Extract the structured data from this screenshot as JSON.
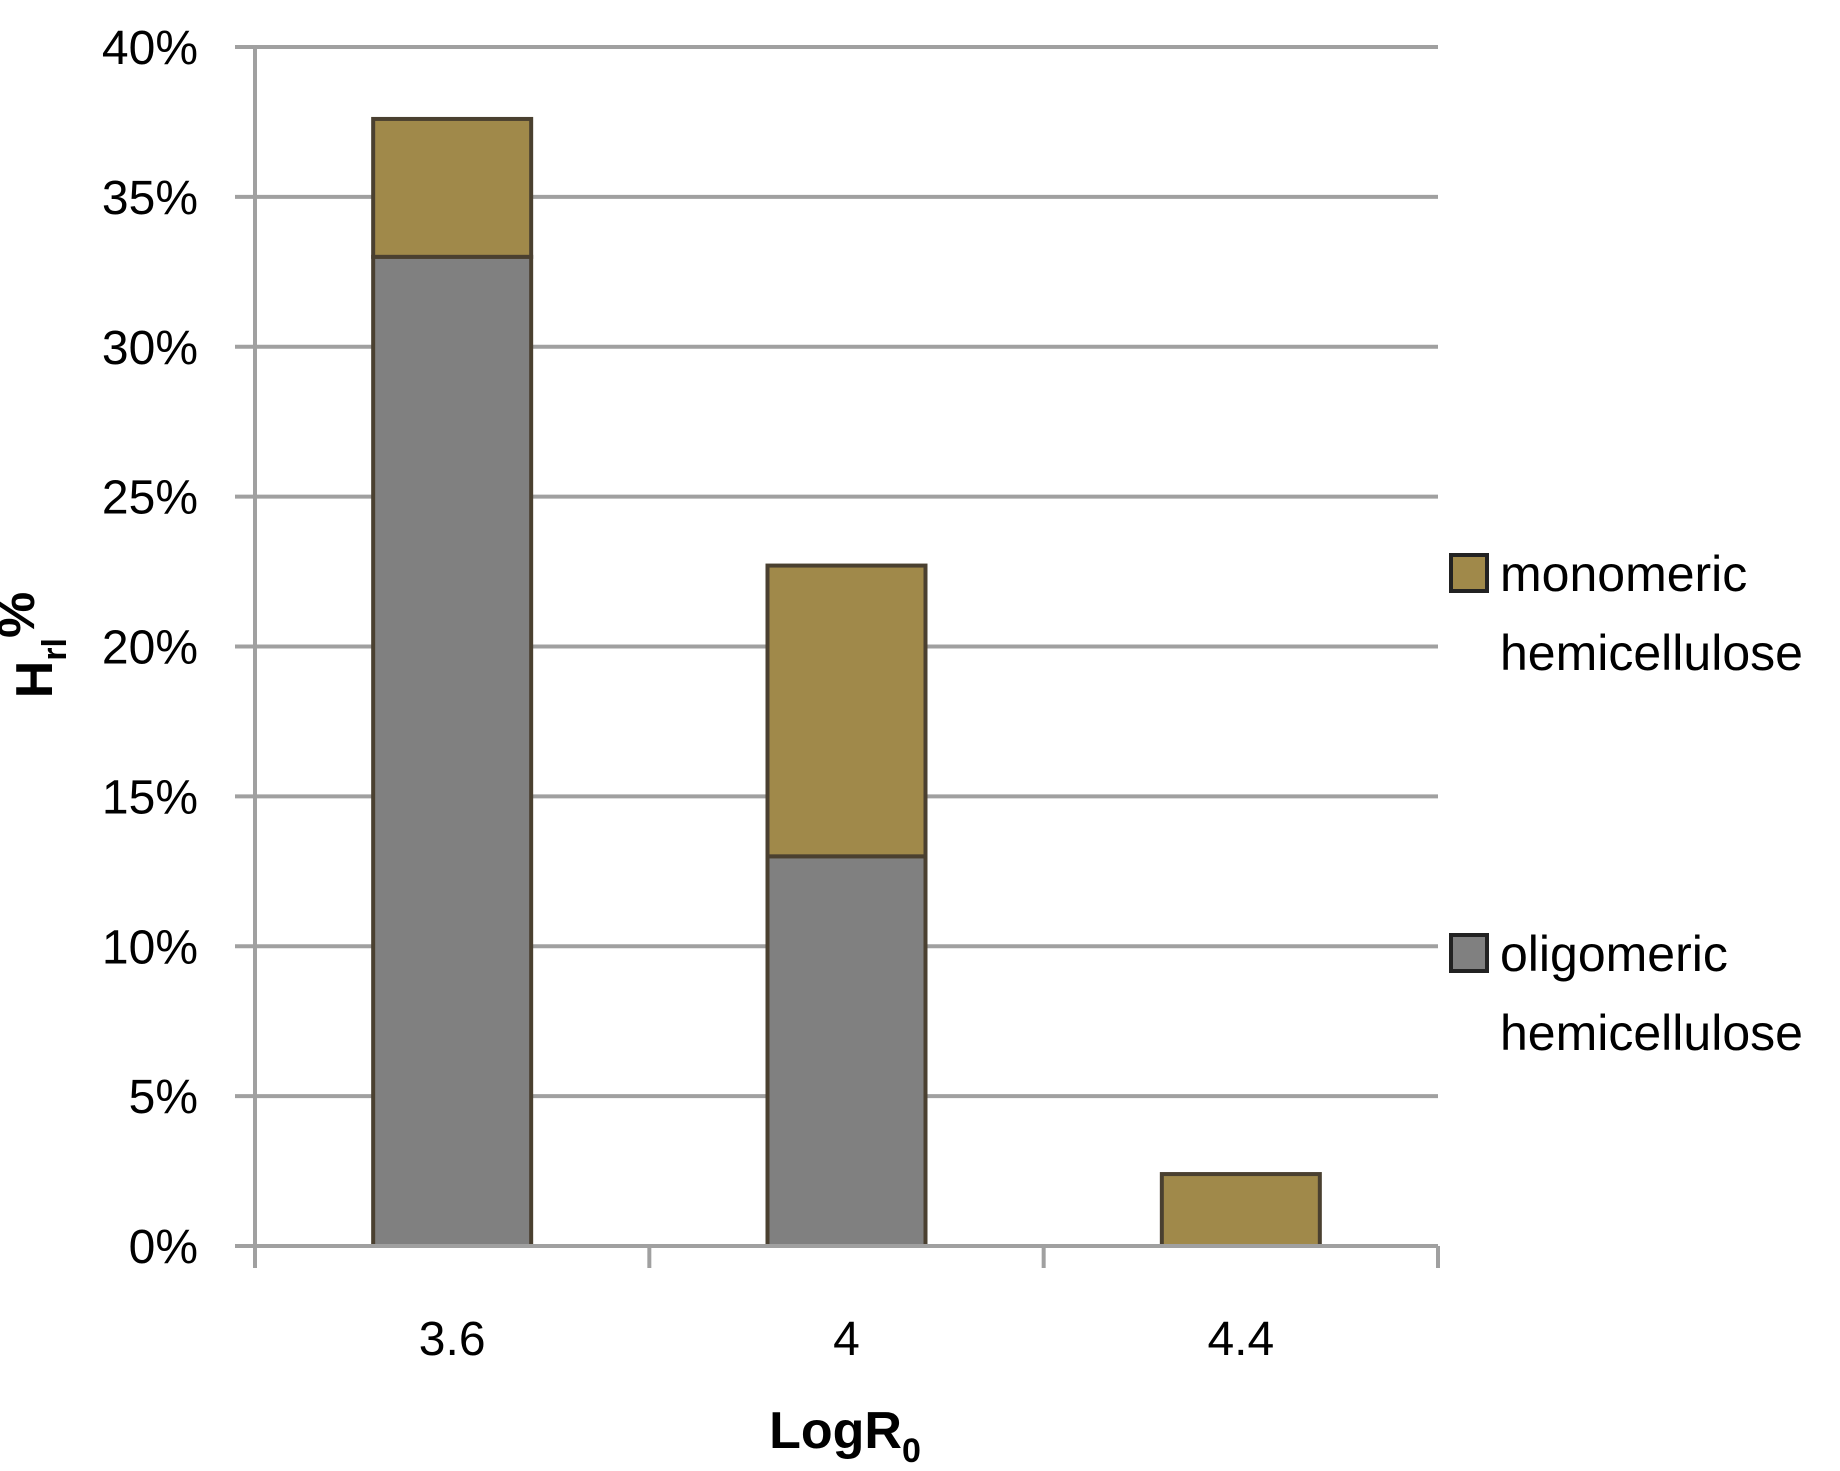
{
  "chart_data": {
    "type": "bar",
    "stacked": true,
    "categories": [
      "3.6",
      "4",
      "4.4"
    ],
    "series": [
      {
        "name": "oligomeric hemicellulose",
        "values": [
          33,
          13,
          0
        ],
        "color": "#808080",
        "legend_lines": [
          "oligomeric",
          "hemicellulose"
        ]
      },
      {
        "name": "monomeric hemicellulose",
        "values": [
          4.6,
          9.7,
          2.4
        ],
        "color": "#a0894a",
        "legend_lines": [
          "monomeric",
          "hemicellulose"
        ]
      }
    ],
    "ylim": [
      0,
      40
    ],
    "ytick_step": 5,
    "ytick_format": "percent",
    "xlabel": {
      "main": "LogR",
      "sub": "0"
    },
    "ylabel": {
      "main": "H",
      "sub": "rl",
      "sup": "%"
    },
    "grid": true,
    "legend_position": "right",
    "gridline_color": "#a0a0a0",
    "bar_outline_color": "#4a4030"
  }
}
